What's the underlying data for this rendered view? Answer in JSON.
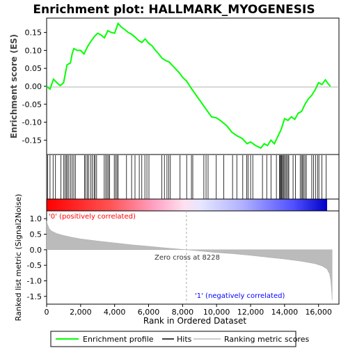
{
  "chart_data": {
    "type": "line",
    "title": "Enrichment plot: HALLMARK_MYOGENESIS",
    "xlabel": "Rank in Ordered Dataset",
    "x_ticks": [
      0,
      2000,
      4000,
      6000,
      8000,
      10000,
      12000,
      14000,
      16000
    ],
    "x_tick_labels": [
      "0",
      "2,000",
      "4,000",
      "6,000",
      "8,000",
      "10,000",
      "12,000",
      "14,000",
      "16,000"
    ],
    "xlim": [
      0,
      17200
    ],
    "n_genes": 16800,
    "es_panel": {
      "ylabel": "Enrichment score (ES)",
      "ylim": [
        -0.19,
        0.19
      ],
      "y_ticks": [
        0.15,
        0.1,
        0.05,
        0.0,
        -0.05,
        -0.1,
        -0.15
      ],
      "y_tick_labels": [
        "0.15",
        "0.10",
        "0.05",
        "0.00",
        "-0.05",
        "-0.10",
        "-0.15"
      ],
      "series": [
        {
          "name": "Enrichment profile",
          "color": "#00ff00",
          "points": [
            [
              0,
              0.0
            ],
            [
              200,
              -0.008
            ],
            [
              400,
              0.02
            ],
            [
              600,
              0.01
            ],
            [
              800,
              0.002
            ],
            [
              1000,
              0.01
            ],
            [
              1200,
              0.06
            ],
            [
              1400,
              0.065
            ],
            [
              1500,
              0.09
            ],
            [
              1600,
              0.105
            ],
            [
              1800,
              0.1
            ],
            [
              2000,
              0.1
            ],
            [
              2200,
              0.09
            ],
            [
              2400,
              0.11
            ],
            [
              2600,
              0.125
            ],
            [
              2800,
              0.138
            ],
            [
              3000,
              0.148
            ],
            [
              3200,
              0.143
            ],
            [
              3400,
              0.135
            ],
            [
              3600,
              0.155
            ],
            [
              3800,
              0.15
            ],
            [
              4000,
              0.148
            ],
            [
              4200,
              0.175
            ],
            [
              4400,
              0.165
            ],
            [
              4600,
              0.158
            ],
            [
              4800,
              0.15
            ],
            [
              5000,
              0.145
            ],
            [
              5200,
              0.137
            ],
            [
              5400,
              0.128
            ],
            [
              5600,
              0.122
            ],
            [
              5800,
              0.132
            ],
            [
              6000,
              0.12
            ],
            [
              6200,
              0.113
            ],
            [
              6400,
              0.1
            ],
            [
              6600,
              0.09
            ],
            [
              6800,
              0.078
            ],
            [
              7000,
              0.072
            ],
            [
              7200,
              0.068
            ],
            [
              7400,
              0.058
            ],
            [
              7600,
              0.048
            ],
            [
              7800,
              0.038
            ],
            [
              8000,
              0.025
            ],
            [
              8228,
              0.015
            ],
            [
              8500,
              -0.005
            ],
            [
              8800,
              -0.025
            ],
            [
              9100,
              -0.045
            ],
            [
              9400,
              -0.065
            ],
            [
              9700,
              -0.085
            ],
            [
              10000,
              -0.088
            ],
            [
              10300,
              -0.098
            ],
            [
              10600,
              -0.11
            ],
            [
              10900,
              -0.128
            ],
            [
              11200,
              -0.138
            ],
            [
              11500,
              -0.145
            ],
            [
              11800,
              -0.16
            ],
            [
              12000,
              -0.155
            ],
            [
              12300,
              -0.165
            ],
            [
              12600,
              -0.172
            ],
            [
              12800,
              -0.16
            ],
            [
              13000,
              -0.165
            ],
            [
              13200,
              -0.15
            ],
            [
              13400,
              -0.16
            ],
            [
              13600,
              -0.14
            ],
            [
              13800,
              -0.12
            ],
            [
              14000,
              -0.09
            ],
            [
              14200,
              -0.095
            ],
            [
              14400,
              -0.085
            ],
            [
              14600,
              -0.092
            ],
            [
              14800,
              -0.075
            ],
            [
              15000,
              -0.07
            ],
            [
              15200,
              -0.05
            ],
            [
              15400,
              -0.035
            ],
            [
              15600,
              -0.025
            ],
            [
              15800,
              -0.01
            ],
            [
              16000,
              0.01
            ],
            [
              16200,
              0.005
            ],
            [
              16400,
              0.018
            ],
            [
              16600,
              0.005
            ],
            [
              16700,
              0.0
            ]
          ]
        }
      ]
    },
    "hits_panel": {
      "series_name": "Hits",
      "hit_ranks": [
        60,
        200,
        380,
        520,
        840,
        1010,
        1090,
        1160,
        1230,
        1310,
        1420,
        1510,
        1600,
        1690,
        2230,
        2300,
        2400,
        2470,
        2590,
        2680,
        2790,
        2850,
        2940,
        3390,
        3480,
        3560,
        3640,
        3700,
        3980,
        4060,
        4140,
        4210,
        4700,
        5000,
        5200,
        5450,
        5600,
        5780,
        5900,
        6020,
        6780,
        6930,
        7080,
        7180,
        7280,
        7850,
        8240,
        8520,
        8600,
        9250,
        9380,
        9500,
        9980,
        10420,
        10940,
        11190,
        11540,
        11770,
        11850,
        12000,
        12130,
        12700,
        12950,
        13200,
        13520,
        13700,
        13750,
        13790,
        13830,
        13880,
        13930,
        13980,
        14060,
        14120,
        14200,
        14250,
        14500,
        14640,
        14920,
        15000,
        15060,
        15120,
        15200,
        15280,
        15600,
        15700,
        15820,
        15940,
        16020,
        16200,
        16450
      ]
    },
    "ranked_metric_panel": {
      "ylabel": "Ranked list metric (Signal2Noise)",
      "ylim": [
        -1.75,
        1.25
      ],
      "y_ticks": [
        1.0,
        0.5,
        0.0,
        -0.5,
        -1.0,
        -1.5
      ],
      "y_tick_labels": [
        "1.0",
        "0.5",
        "0.0",
        "-0.5",
        "-1.0",
        "-1.5"
      ],
      "series_name": "Ranking metric scores",
      "fill_color": "#bbbbbb",
      "points": [
        [
          0,
          0.92
        ],
        [
          60,
          0.8
        ],
        [
          150,
          0.68
        ],
        [
          300,
          0.6
        ],
        [
          600,
          0.52
        ],
        [
          1000,
          0.46
        ],
        [
          1500,
          0.4
        ],
        [
          2000,
          0.35
        ],
        [
          3000,
          0.28
        ],
        [
          4000,
          0.22
        ],
        [
          5000,
          0.16
        ],
        [
          6000,
          0.11
        ],
        [
          7000,
          0.06
        ],
        [
          8228,
          0.0
        ],
        [
          9000,
          -0.04
        ],
        [
          10000,
          -0.09
        ],
        [
          11000,
          -0.13
        ],
        [
          12000,
          -0.18
        ],
        [
          13000,
          -0.24
        ],
        [
          14000,
          -0.3
        ],
        [
          15000,
          -0.37
        ],
        [
          15800,
          -0.45
        ],
        [
          16200,
          -0.52
        ],
        [
          16500,
          -0.62
        ],
        [
          16650,
          -0.78
        ],
        [
          16720,
          -1.0
        ],
        [
          16780,
          -1.4
        ],
        [
          16800,
          -1.62
        ]
      ],
      "zero_cross_label": "Zero cross at 8228",
      "zero_cross_rank": 8228,
      "positive_label": "'0' (positively correlated)",
      "negative_label": "'1' (negatively correlated)",
      "positive_color": "#ff0000",
      "negative_color": "#0000ff"
    },
    "legend": {
      "placement": "bottom",
      "items": [
        {
          "name": "Enrichment profile",
          "color": "#00ff00"
        },
        {
          "name": "Hits",
          "color": "#000000"
        },
        {
          "name": "Ranking metric scores",
          "color": "#bbbbbb"
        }
      ]
    }
  }
}
